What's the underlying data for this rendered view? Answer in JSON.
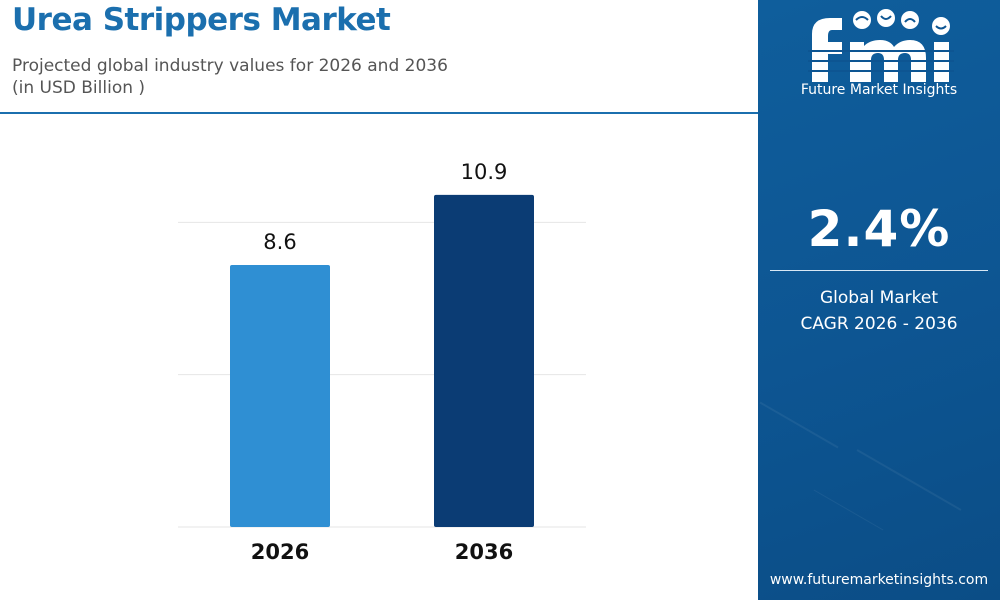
{
  "header": {
    "title": "Urea Strippers Market",
    "subtitle": "Projected global industry values for 2026 and 2036",
    "unit": "(in USD Billion )"
  },
  "chart_data": {
    "type": "bar",
    "categories": [
      "2026",
      "2036"
    ],
    "values": [
      8.6,
      10.9
    ],
    "value_labels": [
      "8.6",
      "10.9"
    ],
    "bar_colors": [
      "#2f8fd3",
      "#0b3c74"
    ],
    "ylim": [
      0,
      15
    ],
    "grid": true,
    "legend": "none"
  },
  "sidebar": {
    "logo_text": "Future Market Insights",
    "cagr_value": "2.4%",
    "cagr_label_line1": "Global Market",
    "cagr_label_line2": "CAGR 2026 - 2036",
    "website": "www.futuremarketinsights.com"
  },
  "colors": {
    "brand_blue": "#1b6fae",
    "panel_blue": "#0d5592"
  }
}
